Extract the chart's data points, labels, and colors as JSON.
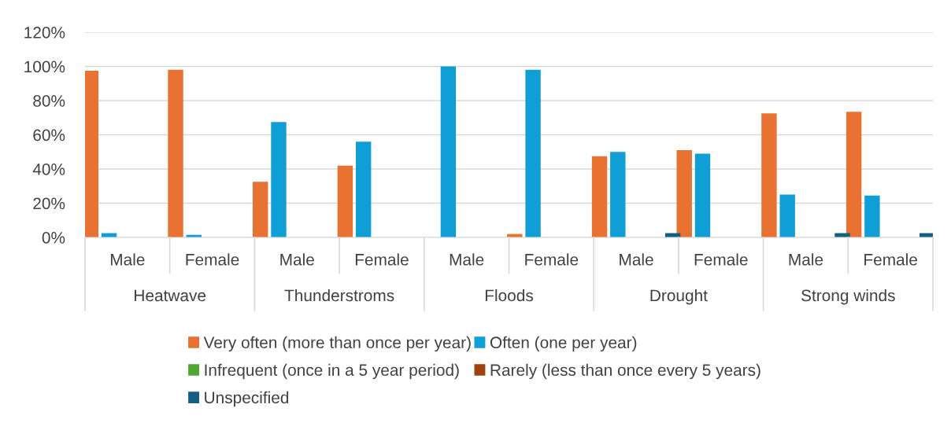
{
  "chart_data": {
    "type": "bar",
    "categories": [
      "Male",
      "Female",
      "Male",
      "Female",
      "Male",
      "Female",
      "Male",
      "Female",
      "Male",
      "Female"
    ],
    "annotations": [
      "Heatwave",
      "Thunderstroms",
      "Floods",
      "Drought",
      "Strong winds"
    ],
    "series": [
      {
        "name": "Very often (more than once per year)",
        "color": "#e97132",
        "values": [
          97.5,
          98,
          32.5,
          42,
          0,
          2,
          47.5,
          51,
          72.5,
          73.5
        ]
      },
      {
        "name": "Often (one per year)",
        "color": "#0f9ed5",
        "values": [
          2.5,
          1.5,
          67.5,
          56,
          100,
          98,
          50,
          49,
          25,
          24.5
        ]
      },
      {
        "name": "Infrequent (once in a 5 year period)",
        "color": "#4ea72e",
        "values": [
          0,
          0,
          0,
          0,
          0,
          0,
          0,
          0,
          0,
          0
        ]
      },
      {
        "name": "Rarely (less than once every 5 years)",
        "color": "#a0410d",
        "values": [
          0,
          0,
          0,
          0,
          0,
          0,
          0,
          0,
          0,
          0
        ]
      },
      {
        "name": "Unspecified",
        "color": "#156082",
        "values": [
          0,
          0,
          0,
          0,
          0,
          0,
          2.5,
          0,
          2.5,
          2.5
        ]
      }
    ],
    "ylim": [
      0,
      120
    ],
    "yticks": [
      {
        "value": 0,
        "label": "0%"
      },
      {
        "value": 20,
        "label": "20%"
      },
      {
        "value": 40,
        "label": "40%"
      },
      {
        "value": 60,
        "label": "60%"
      },
      {
        "value": 80,
        "label": "80%"
      },
      {
        "value": 100,
        "label": "100%"
      },
      {
        "value": 120,
        "label": "120%"
      }
    ],
    "grid": "y",
    "legend": "bottom"
  }
}
